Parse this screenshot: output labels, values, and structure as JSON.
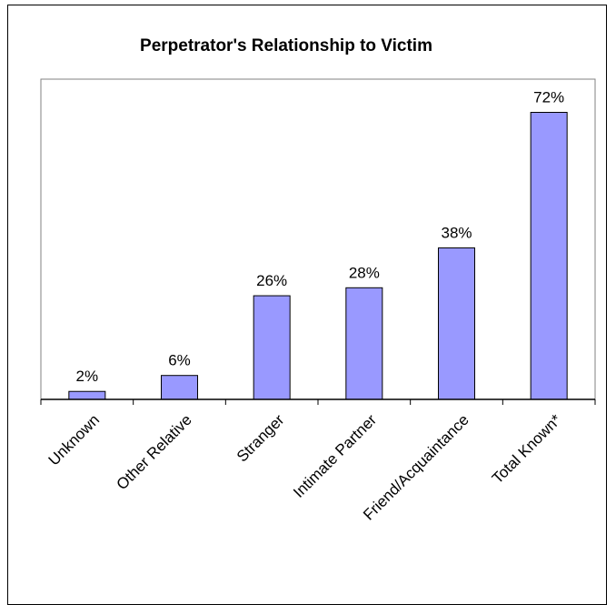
{
  "chart_data": {
    "type": "bar",
    "title": "Perpetrator's Relationship to Victim",
    "categories": [
      "Unknown",
      "Other Relative",
      "Stranger",
      "Intimate Partner",
      "Friend/Acquaintance",
      "Total Known*"
    ],
    "values": [
      2,
      6,
      26,
      28,
      38,
      72
    ],
    "value_labels": [
      "2%",
      "6%",
      "26%",
      "28%",
      "38%",
      "72%"
    ],
    "ylim": [
      0,
      80
    ],
    "grid": false,
    "legend": "none",
    "colors": {
      "bar_fill": "#9999ff",
      "bar_stroke": "#000000"
    }
  }
}
